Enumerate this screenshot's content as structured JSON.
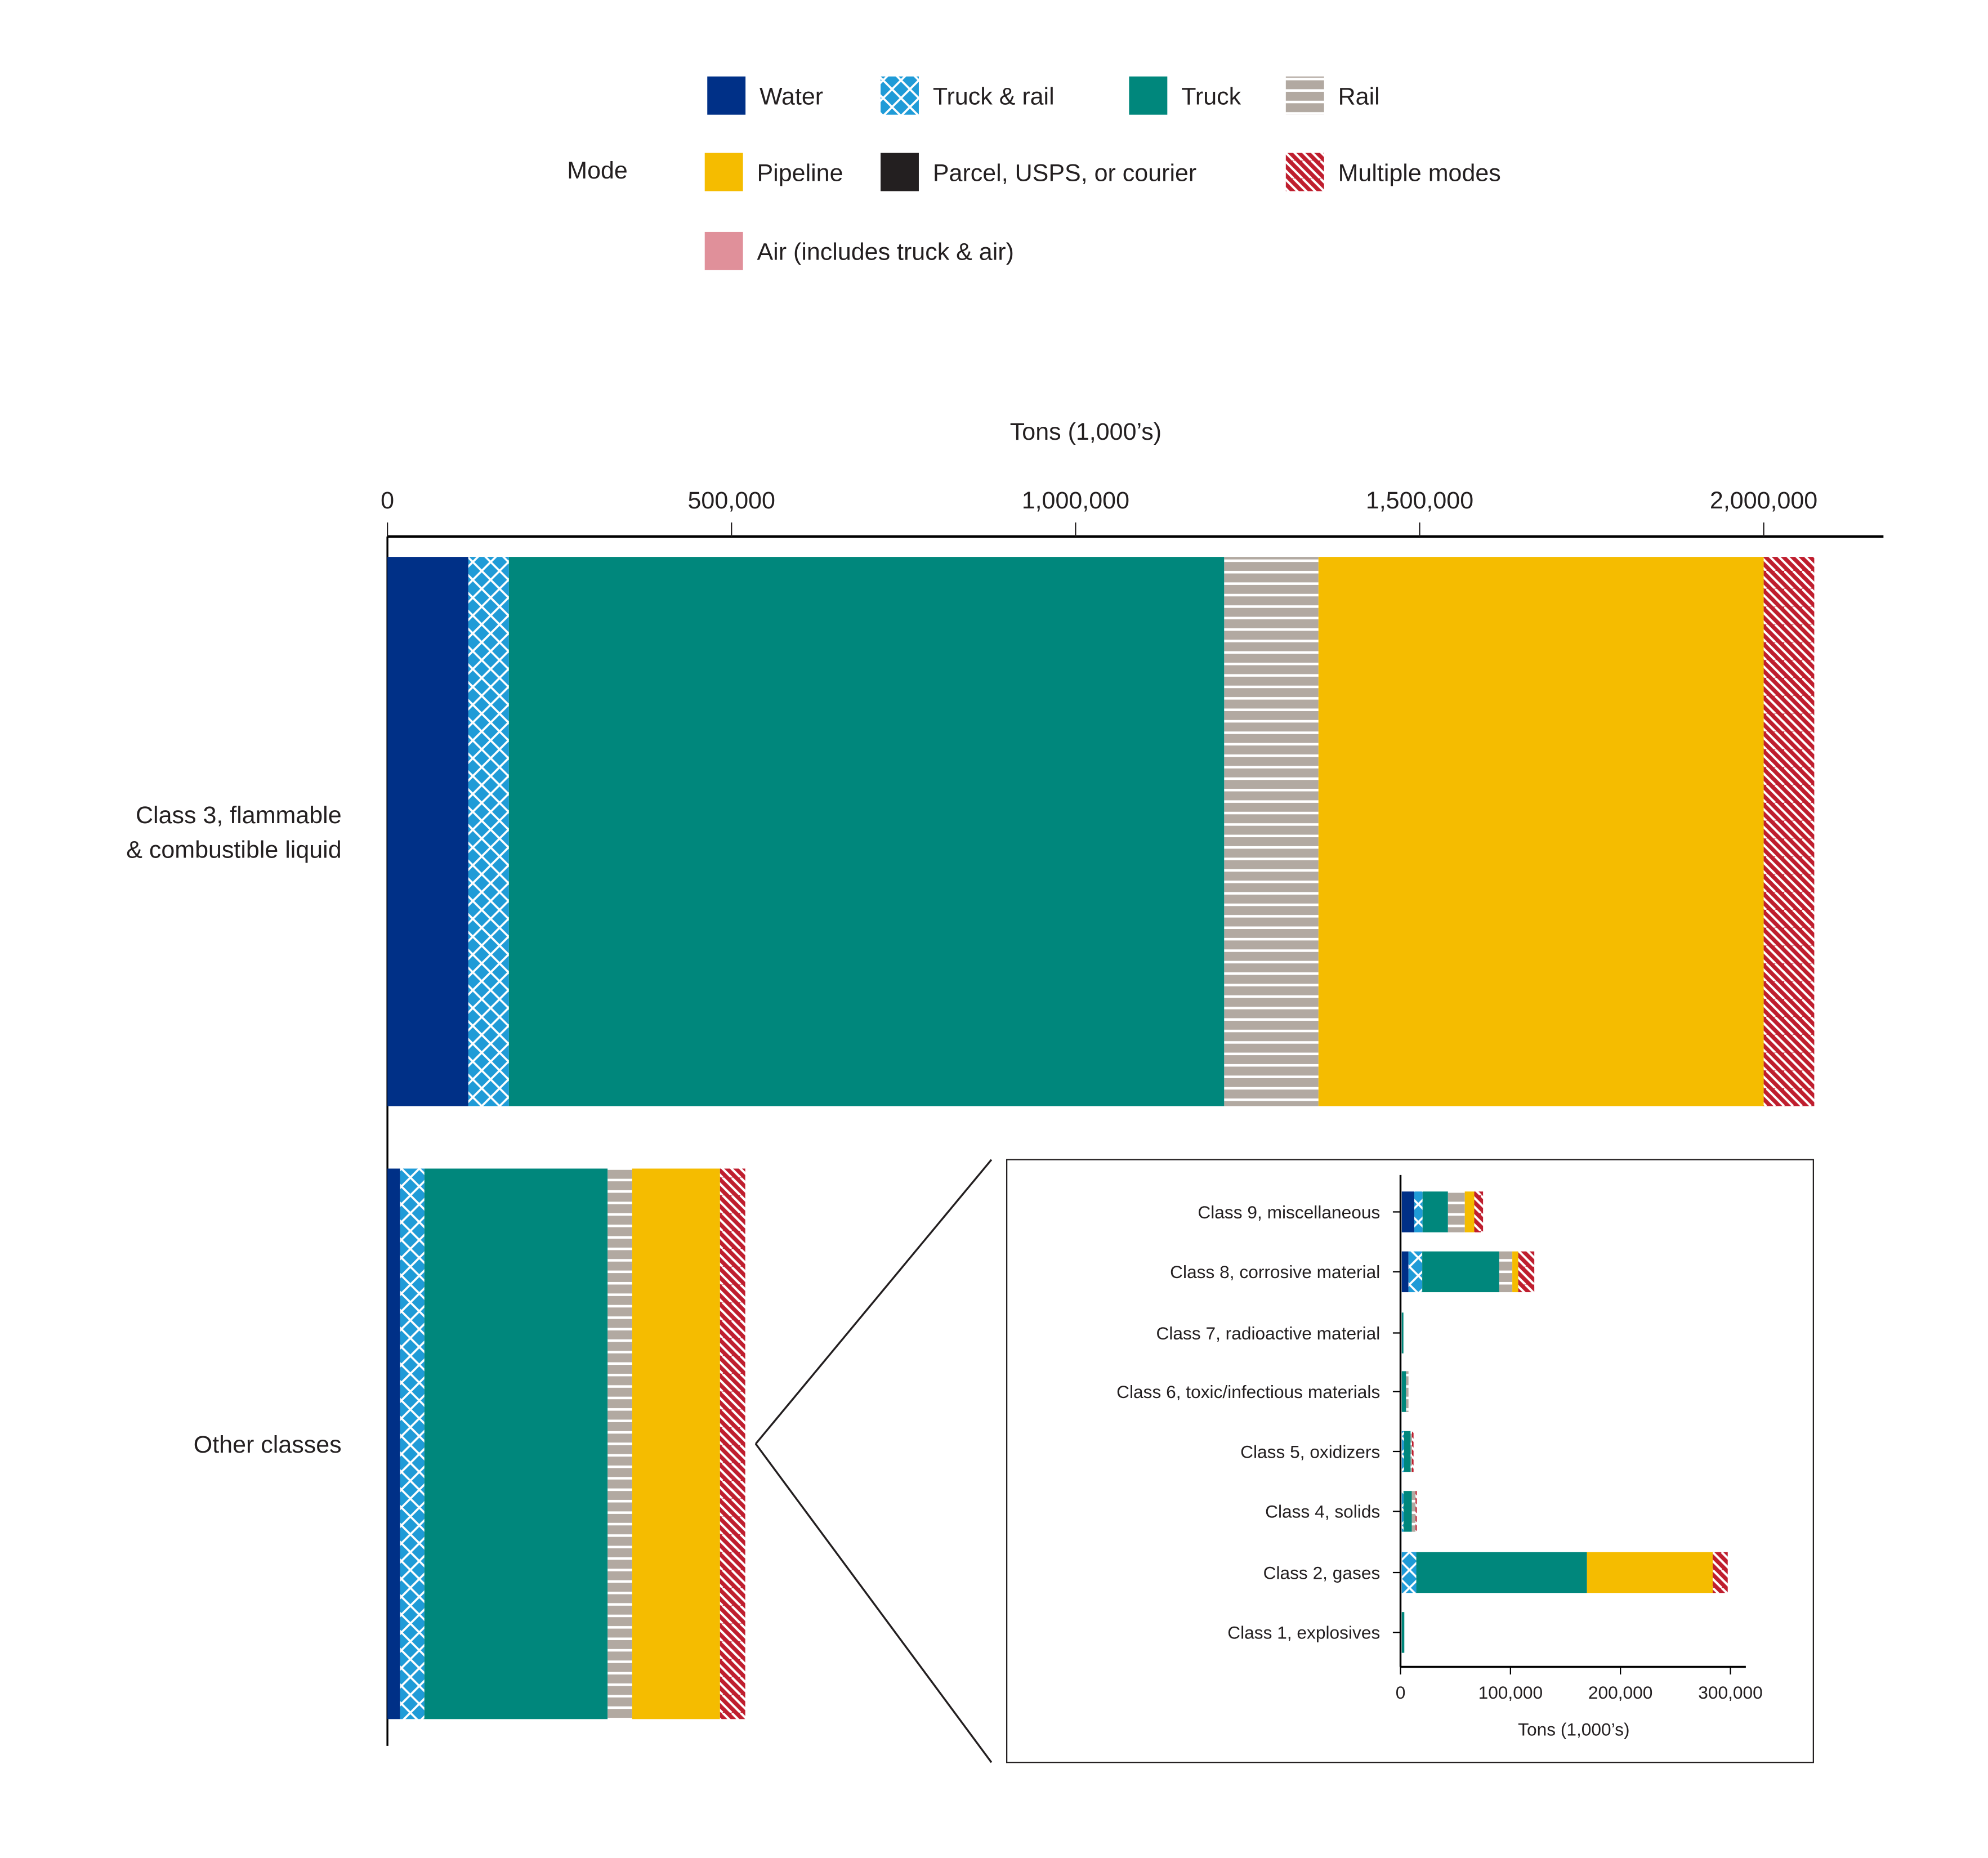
{
  "legend": {
    "title": "Mode",
    "items": [
      {
        "key": "water",
        "label": "Water",
        "color": "#003087",
        "pattern": "solid"
      },
      {
        "key": "truck_rail",
        "label": "Truck & rail",
        "color": "#1f9bd7",
        "pattern": "crosshatch"
      },
      {
        "key": "truck",
        "label": "Truck",
        "color": "#00877c",
        "pattern": "solid"
      },
      {
        "key": "rail",
        "label": "Rail",
        "color": "#b2a9a1",
        "pattern": "horizontal-lines"
      },
      {
        "key": "pipeline",
        "label": "Pipeline",
        "color": "#f5bc00",
        "pattern": "solid"
      },
      {
        "key": "parcel",
        "label": "Parcel, USPS, or courier",
        "color": "#231f20",
        "pattern": "solid"
      },
      {
        "key": "multiple",
        "label": "Multiple modes",
        "color": "#bf1e2e",
        "pattern": "diagonal-lines"
      },
      {
        "key": "air",
        "label": "Air (includes truck & air)",
        "color": "#e0909a",
        "pattern": "solid"
      }
    ]
  },
  "chart_data": [
    {
      "type": "bar",
      "orientation": "horizontal-stacked",
      "xlabel": "Tons (1,000’s)",
      "xlim": [
        0,
        2170000
      ],
      "xticks": [
        "0",
        "500,000",
        "1,000,000",
        "1,500,000",
        "2,000,000"
      ],
      "xtick_values": [
        0,
        500000,
        1000000,
        1500000,
        2000000
      ],
      "axis_position": "top",
      "categories": [
        "Class 3, flammable & combustible liquid",
        "Other classes"
      ],
      "category_lines": [
        [
          "Class 3, flammable",
          "& combustible liquid"
        ],
        [
          "Other classes"
        ]
      ],
      "series": [
        {
          "name": "Water",
          "key": "water",
          "values": [
            117600,
            18500
          ]
        },
        {
          "name": "Truck & rail",
          "key": "truck_rail",
          "values": [
            58900,
            35200
          ]
        },
        {
          "name": "Truck",
          "key": "truck",
          "values": [
            1039500,
            266300
          ]
        },
        {
          "name": "Rail",
          "key": "rail",
          "values": [
            137000,
            35600
          ]
        },
        {
          "name": "Pipeline",
          "key": "pipeline",
          "values": [
            647000,
            127700
          ]
        },
        {
          "name": "Parcel, USPS, or courier",
          "key": "parcel",
          "values": [
            0,
            0
          ]
        },
        {
          "name": "Multiple modes",
          "key": "multiple",
          "values": [
            73500,
            36700
          ]
        },
        {
          "name": "Air (includes truck & air)",
          "key": "air",
          "values": [
            0,
            0
          ]
        }
      ]
    },
    {
      "type": "bar",
      "orientation": "horizontal-stacked",
      "xlabel": "Tons (1,000’s)",
      "xlim": [
        0,
        313000
      ],
      "xticks": [
        "0",
        "100,000",
        "200,000",
        "300,000"
      ],
      "xtick_values": [
        0,
        100000,
        200000,
        300000
      ],
      "categories": [
        "Class 9, miscellaneous",
        "Class 8, corrosive material",
        "Class 7, radioactive material",
        "Class 6, toxic/infectious materials",
        "Class 5, oxidizers",
        "Class 4, solids",
        "Class 2, gases",
        "Class 1, explosives"
      ],
      "series": [
        {
          "name": "Water",
          "key": "water",
          "values": [
            11400,
            6100,
            0,
            0,
            0,
            0,
            0,
            0
          ]
        },
        {
          "name": "Truck & rail",
          "key": "truck_rail",
          "values": [
            7500,
            12500,
            0,
            0,
            2000,
            1600,
            13200,
            0
          ]
        },
        {
          "name": "Truck",
          "key": "truck",
          "values": [
            23100,
            70000,
            1500,
            3900,
            6000,
            7500,
            155200,
            2300
          ]
        },
        {
          "name": "Rail",
          "key": "rail",
          "values": [
            15300,
            11900,
            0,
            2200,
            1300,
            3400,
            0,
            0
          ]
        },
        {
          "name": "Pipeline",
          "key": "pipeline",
          "values": [
            8600,
            5400,
            0,
            0,
            0,
            0,
            114300,
            0
          ]
        },
        {
          "name": "Parcel, USPS, or courier",
          "key": "parcel",
          "values": [
            0,
            0,
            0,
            0,
            0,
            0,
            0,
            0
          ]
        },
        {
          "name": "Multiple modes",
          "key": "multiple",
          "values": [
            8000,
            14600,
            0,
            0,
            1400,
            1100,
            13700,
            0
          ]
        },
        {
          "name": "Air (includes truck & air)",
          "key": "air",
          "values": [
            0,
            0,
            0,
            0,
            0,
            0,
            0,
            0
          ]
        }
      ]
    }
  ]
}
